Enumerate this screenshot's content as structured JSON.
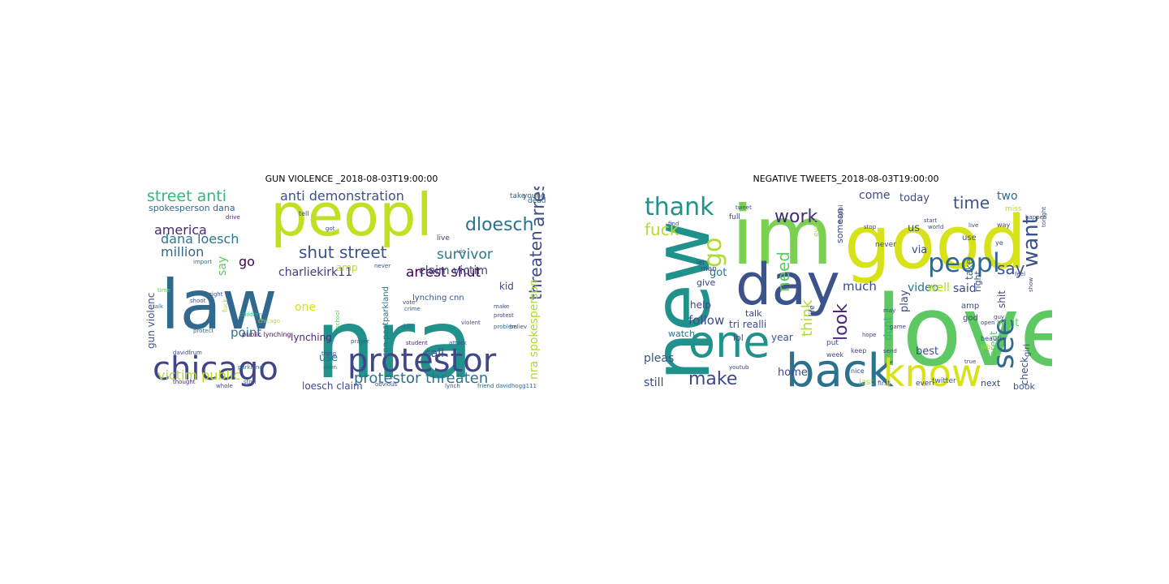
{
  "figure": {
    "panels": [
      {
        "title": "GUN VIOLENCE _2018-08-03T19:00:00",
        "words": [
          {
            "text": "nra",
            "color": "#21918c"
          },
          {
            "text": "law",
            "color": "#31688e"
          },
          {
            "text": "peopl",
            "color": "#c2df23"
          },
          {
            "text": "chicago",
            "color": "#414487"
          },
          {
            "text": "protestor",
            "color": "#404688"
          },
          {
            "text": "street anti",
            "color": "#35b779"
          },
          {
            "text": "anti demonstration",
            "color": "#3b528b"
          },
          {
            "text": "dloesch",
            "color": "#2c728e"
          },
          {
            "text": "arrest",
            "color": "#3b528b"
          },
          {
            "text": "threaten",
            "color": "#3e4989"
          },
          {
            "text": "america",
            "color": "#482878"
          },
          {
            "text": "dana loesch",
            "color": "#2a788e"
          },
          {
            "text": "million",
            "color": "#31688e"
          },
          {
            "text": "shut street",
            "color": "#3b528b"
          },
          {
            "text": "arrest shut",
            "color": "#440154"
          },
          {
            "text": "survivor",
            "color": "#2a788e"
          },
          {
            "text": "claim victim",
            "color": "#3e4989"
          },
          {
            "text": "charliekirk11",
            "color": "#453781"
          },
          {
            "text": "say",
            "color": "#5ec962"
          },
          {
            "text": "go",
            "color": "#440154"
          },
          {
            "text": "amp",
            "color": "#b5de2b"
          },
          {
            "text": "call",
            "color": "#3b528b"
          },
          {
            "text": "kid",
            "color": "#3e4989"
          },
          {
            "text": "point",
            "color": "#2c728e"
          },
          {
            "text": "lynching",
            "color": "#482878"
          },
          {
            "text": "use",
            "color": "#2c728e"
          },
          {
            "text": "one",
            "color": "#d8e219"
          },
          {
            "text": "protestor threaten",
            "color": "#2c728e"
          },
          {
            "text": "victim public",
            "color": "#b5de2b"
          },
          {
            "text": "loesch claim",
            "color": "#3e4989"
          },
          {
            "text": "gun violenc",
            "color": "#3b528b"
          },
          {
            "text": "nra spokesperson",
            "color": "#addc30"
          },
          {
            "text": "spokesperson dana",
            "color": "#31688e"
          },
          {
            "text": "lynching cnn",
            "color": "#3b528b"
          },
          {
            "text": "cnn postparkland",
            "color": "#2c728e"
          },
          {
            "text": "live",
            "color": "#3e4989"
          },
          {
            "text": "take",
            "color": "#31688e"
          },
          {
            "text": "young",
            "color": "#3e4989"
          },
          {
            "text": "dead",
            "color": "#31688e"
          },
          {
            "text": "tell",
            "color": "#3e4989"
          },
          {
            "text": "drive",
            "color": "#482878"
          },
          {
            "text": "import",
            "color": "#2c728e"
          },
          {
            "text": "right",
            "color": "#3e4989"
          },
          {
            "text": "shoot",
            "color": "#3b528b"
          },
          {
            "text": "protect",
            "color": "#2c728e"
          },
          {
            "text": "public lynching",
            "color": "#440154"
          },
          {
            "text": "davidfrum",
            "color": "#3e4989"
          },
          {
            "text": "children",
            "color": "#35b779"
          },
          {
            "text": "chicago",
            "color": "#b5de2b"
          },
          {
            "text": "school",
            "color": "#5ec962"
          },
          {
            "text": "parkland",
            "color": "#2c728e"
          },
          {
            "text": "thing",
            "color": "#3e4989"
          },
          {
            "text": "prayer",
            "color": "#3b528b"
          },
          {
            "text": "vote",
            "color": "#3e4989"
          },
          {
            "text": "crime",
            "color": "#31688e"
          },
          {
            "text": "protest",
            "color": "#3e4989"
          },
          {
            "text": "problem",
            "color": "#2c728e"
          },
          {
            "text": "make",
            "color": "#3e4989"
          },
          {
            "text": "violent",
            "color": "#3b528b"
          },
          {
            "text": "student",
            "color": "#482878"
          },
          {
            "text": "obvious",
            "color": "#3e4989"
          },
          {
            "text": "lynch",
            "color": "#3b528b"
          },
          {
            "text": "friend davidhogg111",
            "color": "#31688e"
          },
          {
            "text": "whole",
            "color": "#3e4989"
          },
          {
            "text": "stori",
            "color": "#3b528b"
          },
          {
            "text": "alien",
            "color": "#2c728e"
          },
          {
            "text": "thought",
            "color": "#482878"
          },
          {
            "text": "fuck",
            "color": "#b5de2b"
          },
          {
            "text": "time",
            "color": "#5ec962"
          },
          {
            "text": "talk",
            "color": "#2c728e"
          },
          {
            "text": "never",
            "color": "#3b528b"
          },
          {
            "text": "got",
            "color": "#3e4989"
          },
          {
            "text": "vio",
            "color": "#3e4989"
          },
          {
            "text": "don",
            "color": "#2c728e"
          },
          {
            "text": "believ",
            "color": "#3b528b"
          },
          {
            "text": "attack",
            "color": "#3e4989"
          }
        ]
      },
      {
        "title": "NEGATIVE TWEETS_2018-08-03T19:00:00",
        "words": [
          {
            "text": "love",
            "color": "#5ec962"
          },
          {
            "text": "im",
            "color": "#7ad151"
          },
          {
            "text": "good",
            "color": "#d8e219"
          },
          {
            "text": "new",
            "color": "#21918c"
          },
          {
            "text": "day",
            "color": "#3b528b"
          },
          {
            "text": "back",
            "color": "#2c728e"
          },
          {
            "text": "know",
            "color": "#d8e219"
          },
          {
            "text": "one",
            "color": "#21918c"
          },
          {
            "text": "thank",
            "color": "#21918c"
          },
          {
            "text": "go",
            "color": "#addc30"
          },
          {
            "text": "work",
            "color": "#482878"
          },
          {
            "text": "need",
            "color": "#5ec962"
          },
          {
            "text": "peopl",
            "color": "#31688e"
          },
          {
            "text": "want",
            "color": "#3b528b"
          },
          {
            "text": "see",
            "color": "#31688e"
          },
          {
            "text": "look",
            "color": "#482878"
          },
          {
            "text": "make",
            "color": "#3e4989"
          },
          {
            "text": "time",
            "color": "#3b528b"
          },
          {
            "text": "fuck",
            "color": "#b5de2b"
          },
          {
            "text": "say",
            "color": "#3b528b"
          },
          {
            "text": "think",
            "color": "#addc30"
          },
          {
            "text": "follow",
            "color": "#3e4989"
          },
          {
            "text": "pleas",
            "color": "#3b528b"
          },
          {
            "text": "today",
            "color": "#3e4989"
          },
          {
            "text": "come",
            "color": "#3e4989"
          },
          {
            "text": "two",
            "color": "#31688e"
          },
          {
            "text": "much",
            "color": "#3e4989"
          },
          {
            "text": "video",
            "color": "#2c728e"
          },
          {
            "text": "well",
            "color": "#addc30"
          },
          {
            "text": "said",
            "color": "#3e4989"
          },
          {
            "text": "play",
            "color": "#3e4989"
          },
          {
            "text": "best",
            "color": "#3e4989"
          },
          {
            "text": "dont",
            "color": "#35b779"
          },
          {
            "text": "year",
            "color": "#3b528b"
          },
          {
            "text": "still",
            "color": "#3e4989"
          },
          {
            "text": "home",
            "color": "#3e4989"
          },
          {
            "text": "check",
            "color": "#3b528b"
          },
          {
            "text": "help",
            "color": "#3e4989"
          },
          {
            "text": "got",
            "color": "#2c728e"
          },
          {
            "text": "tri realli",
            "color": "#3e4989"
          },
          {
            "text": "talk",
            "color": "#3e4989"
          },
          {
            "text": "lol",
            "color": "#3e4989"
          },
          {
            "text": "give",
            "color": "#3e4989"
          },
          {
            "text": "watch",
            "color": "#2c728e"
          },
          {
            "text": "us",
            "color": "#3b528b"
          },
          {
            "text": "via",
            "color": "#3e4989"
          },
          {
            "text": "use",
            "color": "#3b528b"
          },
          {
            "text": "take",
            "color": "#2c728e"
          },
          {
            "text": "shit",
            "color": "#3e4989"
          },
          {
            "text": "amp",
            "color": "#3e4989"
          },
          {
            "text": "god",
            "color": "#3e4989"
          },
          {
            "text": "wait",
            "color": "#5ec962"
          },
          {
            "text": "great",
            "color": "#5ec962"
          },
          {
            "text": "girl",
            "color": "#3e4989"
          },
          {
            "text": "book",
            "color": "#3b528b"
          },
          {
            "text": "next",
            "color": "#3e4989"
          },
          {
            "text": "twitter",
            "color": "#3b528b"
          },
          {
            "text": "everi",
            "color": "#3e4989"
          },
          {
            "text": "first",
            "color": "#3e4989"
          },
          {
            "text": "last",
            "color": "#addc30"
          },
          {
            "text": "nice",
            "color": "#3e4989"
          },
          {
            "text": "week",
            "color": "#3e4989"
          },
          {
            "text": "keep",
            "color": "#3e4989"
          },
          {
            "text": "put",
            "color": "#3e4989"
          },
          {
            "text": "job",
            "color": "#b5de2b"
          },
          {
            "text": "right",
            "color": "#3b528b"
          },
          {
            "text": "never",
            "color": "#3e4989"
          },
          {
            "text": "man",
            "color": "#3e4989"
          },
          {
            "text": "let",
            "color": "#3e4989"
          },
          {
            "text": "life",
            "color": "#3b528b"
          },
          {
            "text": "someon",
            "color": "#3e4989"
          },
          {
            "text": "full",
            "color": "#3e4989"
          },
          {
            "text": "miss",
            "color": "#b5de2b"
          },
          {
            "text": "way",
            "color": "#3e4989"
          },
          {
            "text": "ye",
            "color": "#3e4989"
          },
          {
            "text": "beauti",
            "color": "#3b528b"
          },
          {
            "text": "game",
            "color": "#3e4989"
          },
          {
            "text": "hope",
            "color": "#3e4989"
          },
          {
            "text": "may",
            "color": "#3e4989"
          },
          {
            "text": "send",
            "color": "#3e4989"
          },
          {
            "text": "youtub",
            "color": "#3e4989"
          },
          {
            "text": "happi",
            "color": "#3e4989"
          },
          {
            "text": "even",
            "color": "#addc30"
          },
          {
            "text": "live",
            "color": "#3e4989"
          },
          {
            "text": "feel",
            "color": "#3e4989"
          },
          {
            "text": "happen",
            "color": "#3e4989"
          },
          {
            "text": "show",
            "color": "#3e4989"
          },
          {
            "text": "open",
            "color": "#3e4989"
          },
          {
            "text": "guy",
            "color": "#3e4989"
          },
          {
            "text": "tonight",
            "color": "#3e4989"
          },
          {
            "text": "tweet",
            "color": "#3e4989"
          },
          {
            "text": "find",
            "color": "#3e4989"
          },
          {
            "text": "stop",
            "color": "#3e4989"
          },
          {
            "text": "start",
            "color": "#3e4989"
          },
          {
            "text": "world",
            "color": "#3e4989"
          },
          {
            "text": "true",
            "color": "#3e4989"
          }
        ]
      }
    ]
  }
}
